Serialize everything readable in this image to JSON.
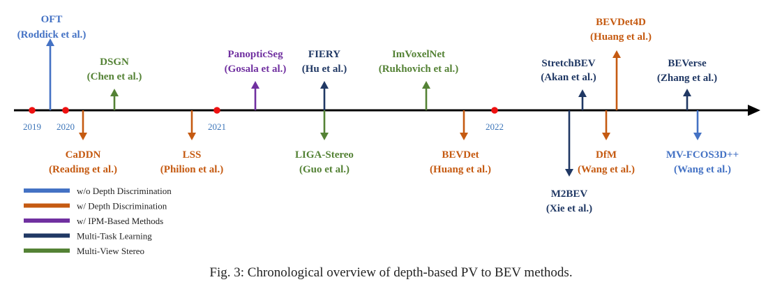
{
  "colors": {
    "axis": "#000000",
    "year_dot": "#ee1111",
    "year_text": "#3b74b8",
    "blue": "#4472c4",
    "orange": "#c55a11",
    "purple": "#7030a0",
    "navy": "#203864",
    "green": "#548235"
  },
  "years": [
    "2019",
    "2020",
    "2021",
    "2022"
  ],
  "methods": [
    {
      "name": "OFT",
      "authors": "(Roddick et al.)",
      "category": "blue",
      "dir": "up"
    },
    {
      "name": "DSGN",
      "authors": "(Chen et al.)",
      "category": "green",
      "dir": "up"
    },
    {
      "name": "CaDDN",
      "authors": "(Reading et al.)",
      "category": "orange",
      "dir": "down"
    },
    {
      "name": "LSS",
      "authors": "(Philion et al.)",
      "category": "orange",
      "dir": "down"
    },
    {
      "name": "PanopticSeg",
      "authors": "(Gosala et al.)",
      "category": "purple",
      "dir": "up"
    },
    {
      "name": "FIERY",
      "authors": "(Hu et al.)",
      "category": "navy",
      "dir": "up"
    },
    {
      "name": "LIGA-Stereo",
      "authors": "(Guo et al.)",
      "category": "green",
      "dir": "down"
    },
    {
      "name": "ImVoxelNet",
      "authors": "(Rukhovich et al.)",
      "category": "green",
      "dir": "up"
    },
    {
      "name": "BEVDet",
      "authors": "(Huang et al.)",
      "category": "orange",
      "dir": "down"
    },
    {
      "name": "StretchBEV",
      "authors": "(Akan et al.)",
      "category": "navy",
      "dir": "up"
    },
    {
      "name": "M2BEV",
      "authors": "(Xie et al.)",
      "category": "navy",
      "dir": "down"
    },
    {
      "name": "DfM",
      "authors": "(Wang et al.)",
      "category": "orange",
      "dir": "down"
    },
    {
      "name": "BEVDet4D",
      "authors": "(Huang et al.)",
      "category": "orange",
      "dir": "up"
    },
    {
      "name": "BEVerse",
      "authors": "(Zhang et al.)",
      "category": "navy",
      "dir": "up"
    },
    {
      "name": "MV-FCOS3D++",
      "authors": "(Wang et al.)",
      "category": "blue",
      "dir": "down"
    }
  ],
  "legend": [
    {
      "label": "w/o Depth Discrimination",
      "category": "blue"
    },
    {
      "label": "w/ Depth Discrimination",
      "category": "orange"
    },
    {
      "label": "w/ IPM-Based Methods",
      "category": "purple"
    },
    {
      "label": "Multi-Task Learning",
      "category": "navy"
    },
    {
      "label": "Multi-View Stereo",
      "category": "green"
    }
  ],
  "caption": "Fig. 3: Chronological overview of depth-based PV to BEV methods."
}
